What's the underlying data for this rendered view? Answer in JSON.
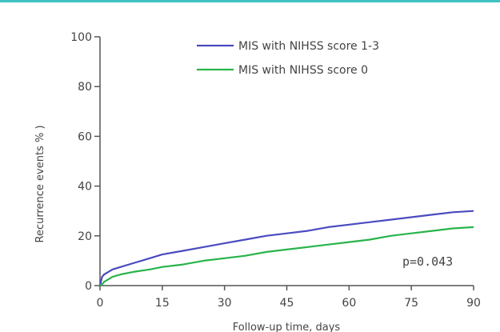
{
  "chart_data": {
    "type": "line",
    "xlabel": "Follow-up time, days",
    "ylabel": "Recurrence events   % )",
    "xlim": [
      0,
      90
    ],
    "ylim": [
      0,
      100
    ],
    "xticks": [
      0,
      15,
      30,
      45,
      60,
      75,
      90
    ],
    "yticks": [
      0,
      20,
      40,
      60,
      80,
      100
    ],
    "xtick_labels": [
      "0",
      "15",
      "30",
      "45",
      "60",
      "75",
      "90"
    ],
    "ytick_labels": [
      "0",
      "20",
      "40",
      "60",
      "80",
      "100"
    ],
    "grid": false,
    "legend_position": "top-right",
    "annotation": "p=0.043",
    "series": [
      {
        "name": "MIS with NIHSS score 1-3",
        "color": "#4a4bc0",
        "x": [
          0,
          0.5,
          1,
          2,
          3,
          5,
          8,
          12,
          15,
          20,
          25,
          30,
          35,
          40,
          45,
          50,
          55,
          60,
          65,
          70,
          75,
          80,
          85,
          90
        ],
        "y": [
          0,
          3.5,
          4.5,
          5.5,
          6.5,
          7.5,
          9,
          11,
          12.5,
          14,
          15.5,
          17,
          18.5,
          20,
          21,
          22,
          23.5,
          24.5,
          25.5,
          26.5,
          27.5,
          28.5,
          29.5,
          30
        ]
      },
      {
        "name": "MIS with NIHSS score 0",
        "color": "#28b44b",
        "x": [
          0,
          0.5,
          1,
          2,
          3,
          5,
          8,
          12,
          15,
          20,
          25,
          30,
          35,
          40,
          45,
          50,
          55,
          60,
          65,
          70,
          75,
          80,
          85,
          90
        ],
        "y": [
          0,
          0.5,
          1.5,
          2.5,
          3.5,
          4.5,
          5.5,
          6.5,
          7.5,
          8.5,
          10,
          11,
          12,
          13.5,
          14.5,
          15.5,
          16.5,
          17.5,
          18.5,
          20,
          21,
          22,
          23,
          23.5
        ]
      }
    ]
  }
}
